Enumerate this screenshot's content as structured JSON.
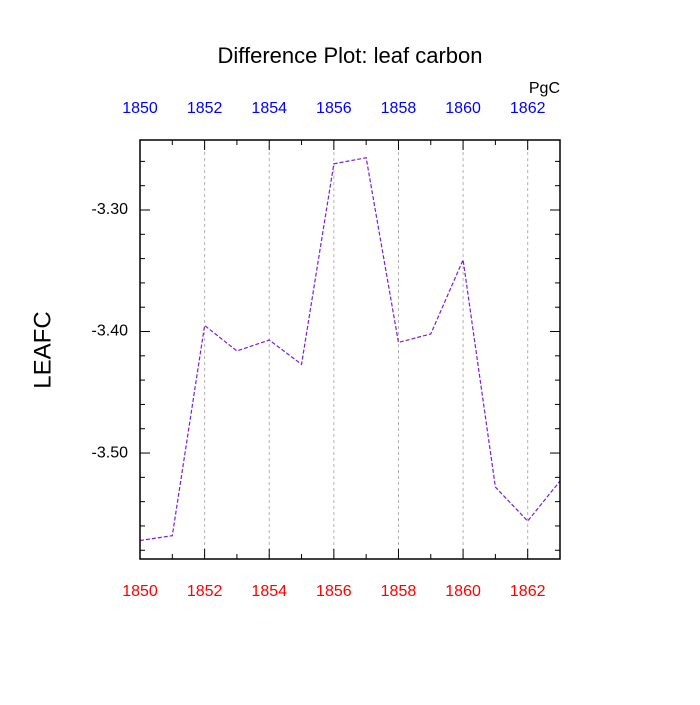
{
  "chart_data": {
    "type": "line",
    "title": "Difference Plot: leaf carbon",
    "units": "PgC",
    "y_label": "LEAFC",
    "x": [
      1850,
      1851,
      1852,
      1853,
      1854,
      1855,
      1856,
      1857,
      1858,
      1859,
      1860,
      1861,
      1862,
      1863
    ],
    "series": [
      {
        "name": "leaf carbon",
        "color": "#7a1fd6",
        "values": [
          -3.572,
          -3.568,
          -3.395,
          -3.416,
          -3.407,
          -3.427,
          -3.262,
          -3.257,
          -3.409,
          -3.402,
          -3.341,
          -3.528,
          -3.556,
          -3.523
        ]
      }
    ],
    "xlim": [
      1850,
      1863
    ],
    "xticks": [
      1850,
      1852,
      1854,
      1856,
      1858,
      1860,
      1862
    ],
    "x_minor_ticks": [
      1851,
      1853,
      1855,
      1857,
      1859,
      1861,
      1863
    ],
    "ylim": [
      -3.5872,
      -3.2424
    ],
    "yticks": [
      {
        "value": -3.3,
        "label": "-3.30"
      },
      {
        "value": -3.4,
        "label": "-3.40"
      },
      {
        "value": -3.5,
        "label": "-3.50"
      }
    ],
    "y_minor_ticks": [
      -3.26,
      -3.28,
      -3.32,
      -3.34,
      -3.36,
      -3.38,
      -3.42,
      -3.44,
      -3.46,
      -3.48,
      -3.52,
      -3.54,
      -3.56,
      -3.58
    ],
    "bottom_tick_color": "#ff0000",
    "top_tick_color": "#0000ff",
    "grid": true
  }
}
